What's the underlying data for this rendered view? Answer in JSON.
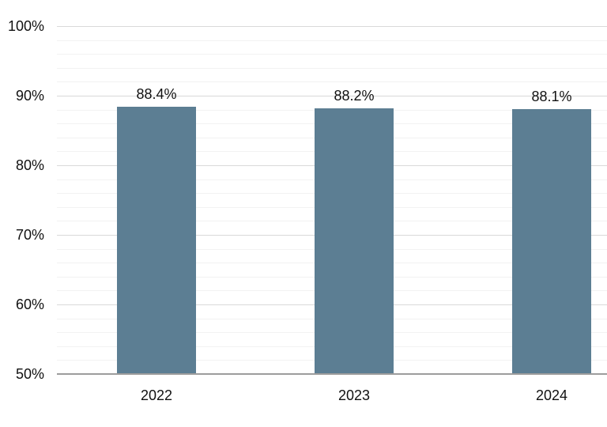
{
  "chart_data": {
    "type": "bar",
    "title": "",
    "xlabel": "",
    "ylabel": "",
    "categories": [
      "2022",
      "2023",
      "2024"
    ],
    "values": [
      88.4,
      88.2,
      88.1
    ],
    "value_labels": [
      "88.4%",
      "88.2%",
      "88.1%"
    ],
    "ylim": [
      50,
      100
    ],
    "yticks": [
      50,
      60,
      70,
      80,
      90,
      100
    ],
    "ytick_labels": [
      "50%",
      "60%",
      "70%",
      "80%",
      "90%",
      "100%"
    ],
    "minor_grid_step": 2,
    "grid": "on",
    "legend_position": "none",
    "colors": {
      "bar": "#5c7e93",
      "major_gridline": "#d9d9d9",
      "minor_gridline": "#f2f2f2",
      "axis_line": "#9d9d9d",
      "text": "#111111",
      "background": "#ffffff"
    }
  }
}
